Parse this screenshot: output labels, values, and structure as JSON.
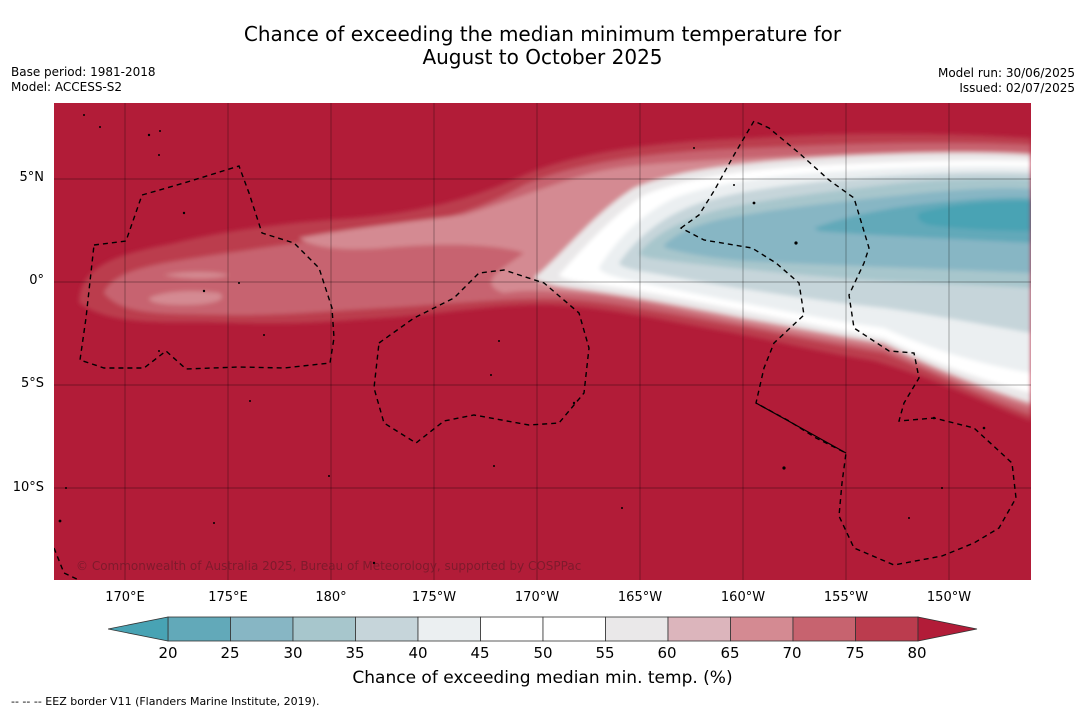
{
  "title_line1": "Chance of exceeding the median minimum temperature for",
  "title_line2": "August to October 2025",
  "meta_left": {
    "base_period": "Base period: 1981-2018",
    "model": "Model: ACCESS-S2"
  },
  "meta_right": {
    "model_run": "Model run: 30/06/2025",
    "issued": "Issued: 02/07/2025"
  },
  "latitude_labels": [
    "5°N",
    "0°",
    "5°S",
    "10°S"
  ],
  "longitude_labels": [
    "170°E",
    "175°E",
    "180°",
    "175°W",
    "170°W",
    "165°W",
    "160°W",
    "155°W",
    "150°W"
  ],
  "copyright": "© Commonwealth of Australia 2025, Bureau of Meteorology, supported by COSPPac",
  "colorbar": {
    "label": "Chance of exceeding median min. temp. (%)",
    "ticks": [
      "20",
      "25",
      "30",
      "35",
      "40",
      "45",
      "50",
      "55",
      "60",
      "65",
      "70",
      "75",
      "80"
    ],
    "colors": [
      "#62a9b9",
      "#87b6c4",
      "#a7c6cc",
      "#c6d5da",
      "#ebeff1",
      "#ffffff",
      "#ffffff",
      "#eae8e9",
      "#dcb5bc",
      "#d48a92",
      "#c7636f",
      "#bb3c4e"
    ],
    "low_color": "#48a3b4",
    "high_color": "#b21c38"
  },
  "footnote": "--  --  -- EEZ border V11 (Flanders Marine Institute, 2019)."
}
